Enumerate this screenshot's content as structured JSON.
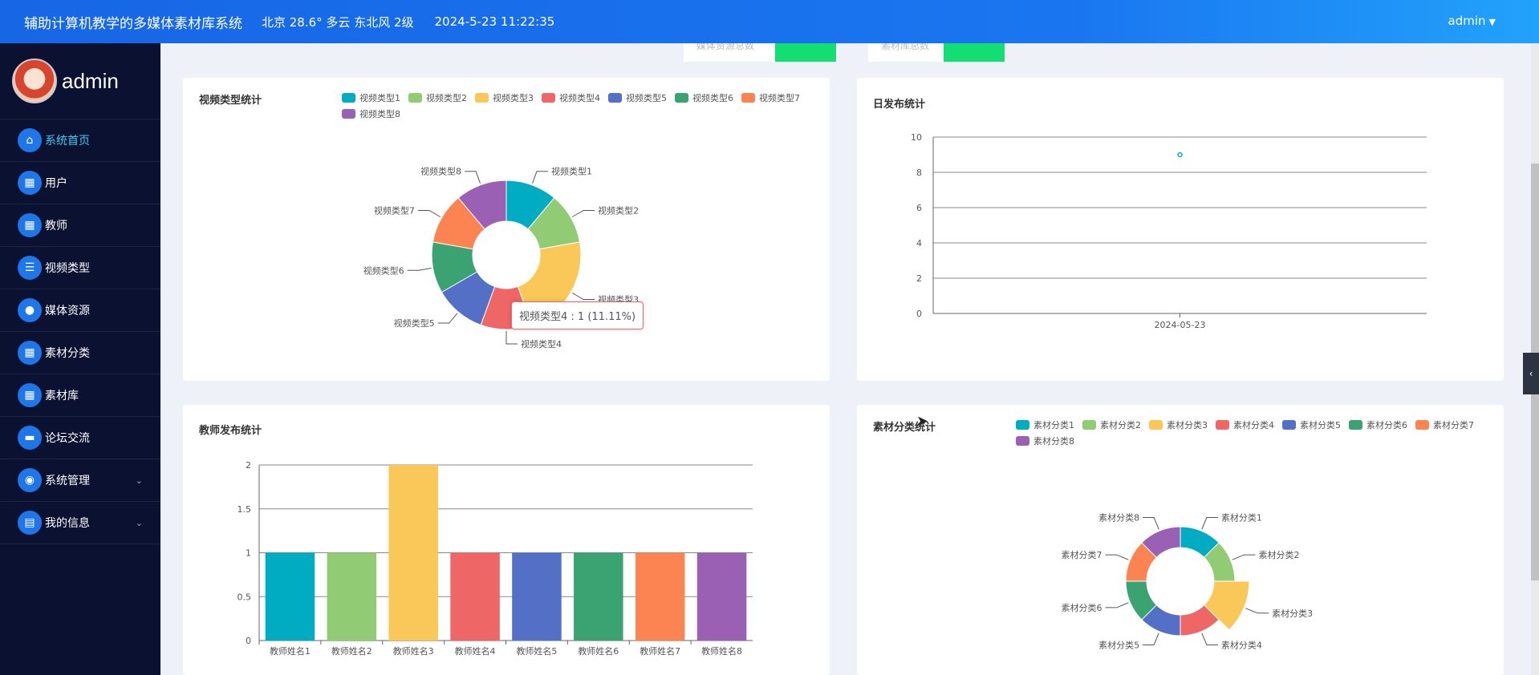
{
  "header": {
    "title": "辅助计算机教学的多媒体素材库系统",
    "weather": "北京  28.6°  多云  东北风  2级",
    "datetime": "2024-5-23 11:22:35",
    "user": "admin",
    "colors": {
      "start": "#1766e5",
      "end": "#22a2fb"
    }
  },
  "sidebar": {
    "username": "admin",
    "items": [
      {
        "label": "系统首页",
        "icon": "home-icon",
        "active": true
      },
      {
        "label": "用户",
        "icon": "grid-icon"
      },
      {
        "label": "教师",
        "icon": "grid-icon"
      },
      {
        "label": "视频类型",
        "icon": "list-icon"
      },
      {
        "label": "媒体资源",
        "icon": "user-icon"
      },
      {
        "label": "素材分类",
        "icon": "grid-icon"
      },
      {
        "label": "素材库",
        "icon": "grid-icon"
      },
      {
        "label": "论坛交流",
        "icon": "briefcase-icon"
      },
      {
        "label": "系统管理",
        "icon": "location-icon",
        "expandable": true
      },
      {
        "label": "我的信息",
        "icon": "card-icon",
        "expandable": true
      }
    ],
    "colors": {
      "bg": "#0b1231",
      "icon_bg": "#1f76e8",
      "active_text": "#47c8f2"
    }
  },
  "top_strip": {
    "label1": "媒体资源总数",
    "label2": "素材库总数",
    "accent": "#13de74"
  },
  "cards": {
    "video_type": {
      "title": "视频类型统计"
    },
    "daily": {
      "title": "日发布统计"
    },
    "teacher": {
      "title": "教师发布统计"
    },
    "material": {
      "title": "素材分类统计"
    }
  },
  "tooltip": {
    "text": "视频类型4 : 1 (11.11%)"
  },
  "palette": [
    "#00acc1",
    "#91cc75",
    "#fac858",
    "#ee6666",
    "#5470c6",
    "#3ba272",
    "#fc8452",
    "#9a60b4"
  ],
  "chart_data": [
    {
      "id": "video_type",
      "type": "pie",
      "title": "视频类型统计",
      "categories": [
        "视频类型1",
        "视频类型2",
        "视频类型3",
        "视频类型4",
        "视频类型5",
        "视频类型6",
        "视频类型7",
        "视频类型8"
      ],
      "values": [
        1,
        1,
        2,
        1,
        1,
        1,
        1,
        1
      ],
      "legend": "top-right"
    },
    {
      "id": "daily",
      "type": "scatter",
      "title": "日发布统计",
      "x": [
        "2024-05-23"
      ],
      "y": [
        9
      ],
      "yticks": [
        "0",
        "2",
        "4",
        "6",
        "8",
        "10"
      ],
      "ylim": [
        0,
        10
      ],
      "grid": true
    },
    {
      "id": "teacher",
      "type": "bar",
      "title": "教师发布统计",
      "categories": [
        "教师姓名1",
        "教师姓名2",
        "教师姓名3",
        "教师姓名4",
        "教师姓名5",
        "教师姓名6",
        "教师姓名7",
        "教师姓名8"
      ],
      "values": [
        1,
        1,
        2,
        1,
        1,
        1,
        1,
        1
      ],
      "yticks": [
        "0",
        "0.5",
        "1",
        "1.5",
        "2"
      ],
      "ylim": [
        0,
        2
      ],
      "grid": true
    },
    {
      "id": "material",
      "type": "pie",
      "title": "素材分类统计",
      "categories": [
        "素材分类1",
        "素材分类2",
        "素材分类3",
        "素材分类4",
        "素材分类5",
        "素材分类6",
        "素材分类7",
        "素材分类8"
      ],
      "values": [
        1,
        1,
        1,
        1,
        1,
        1,
        1,
        1
      ],
      "legend": "top-right"
    }
  ]
}
